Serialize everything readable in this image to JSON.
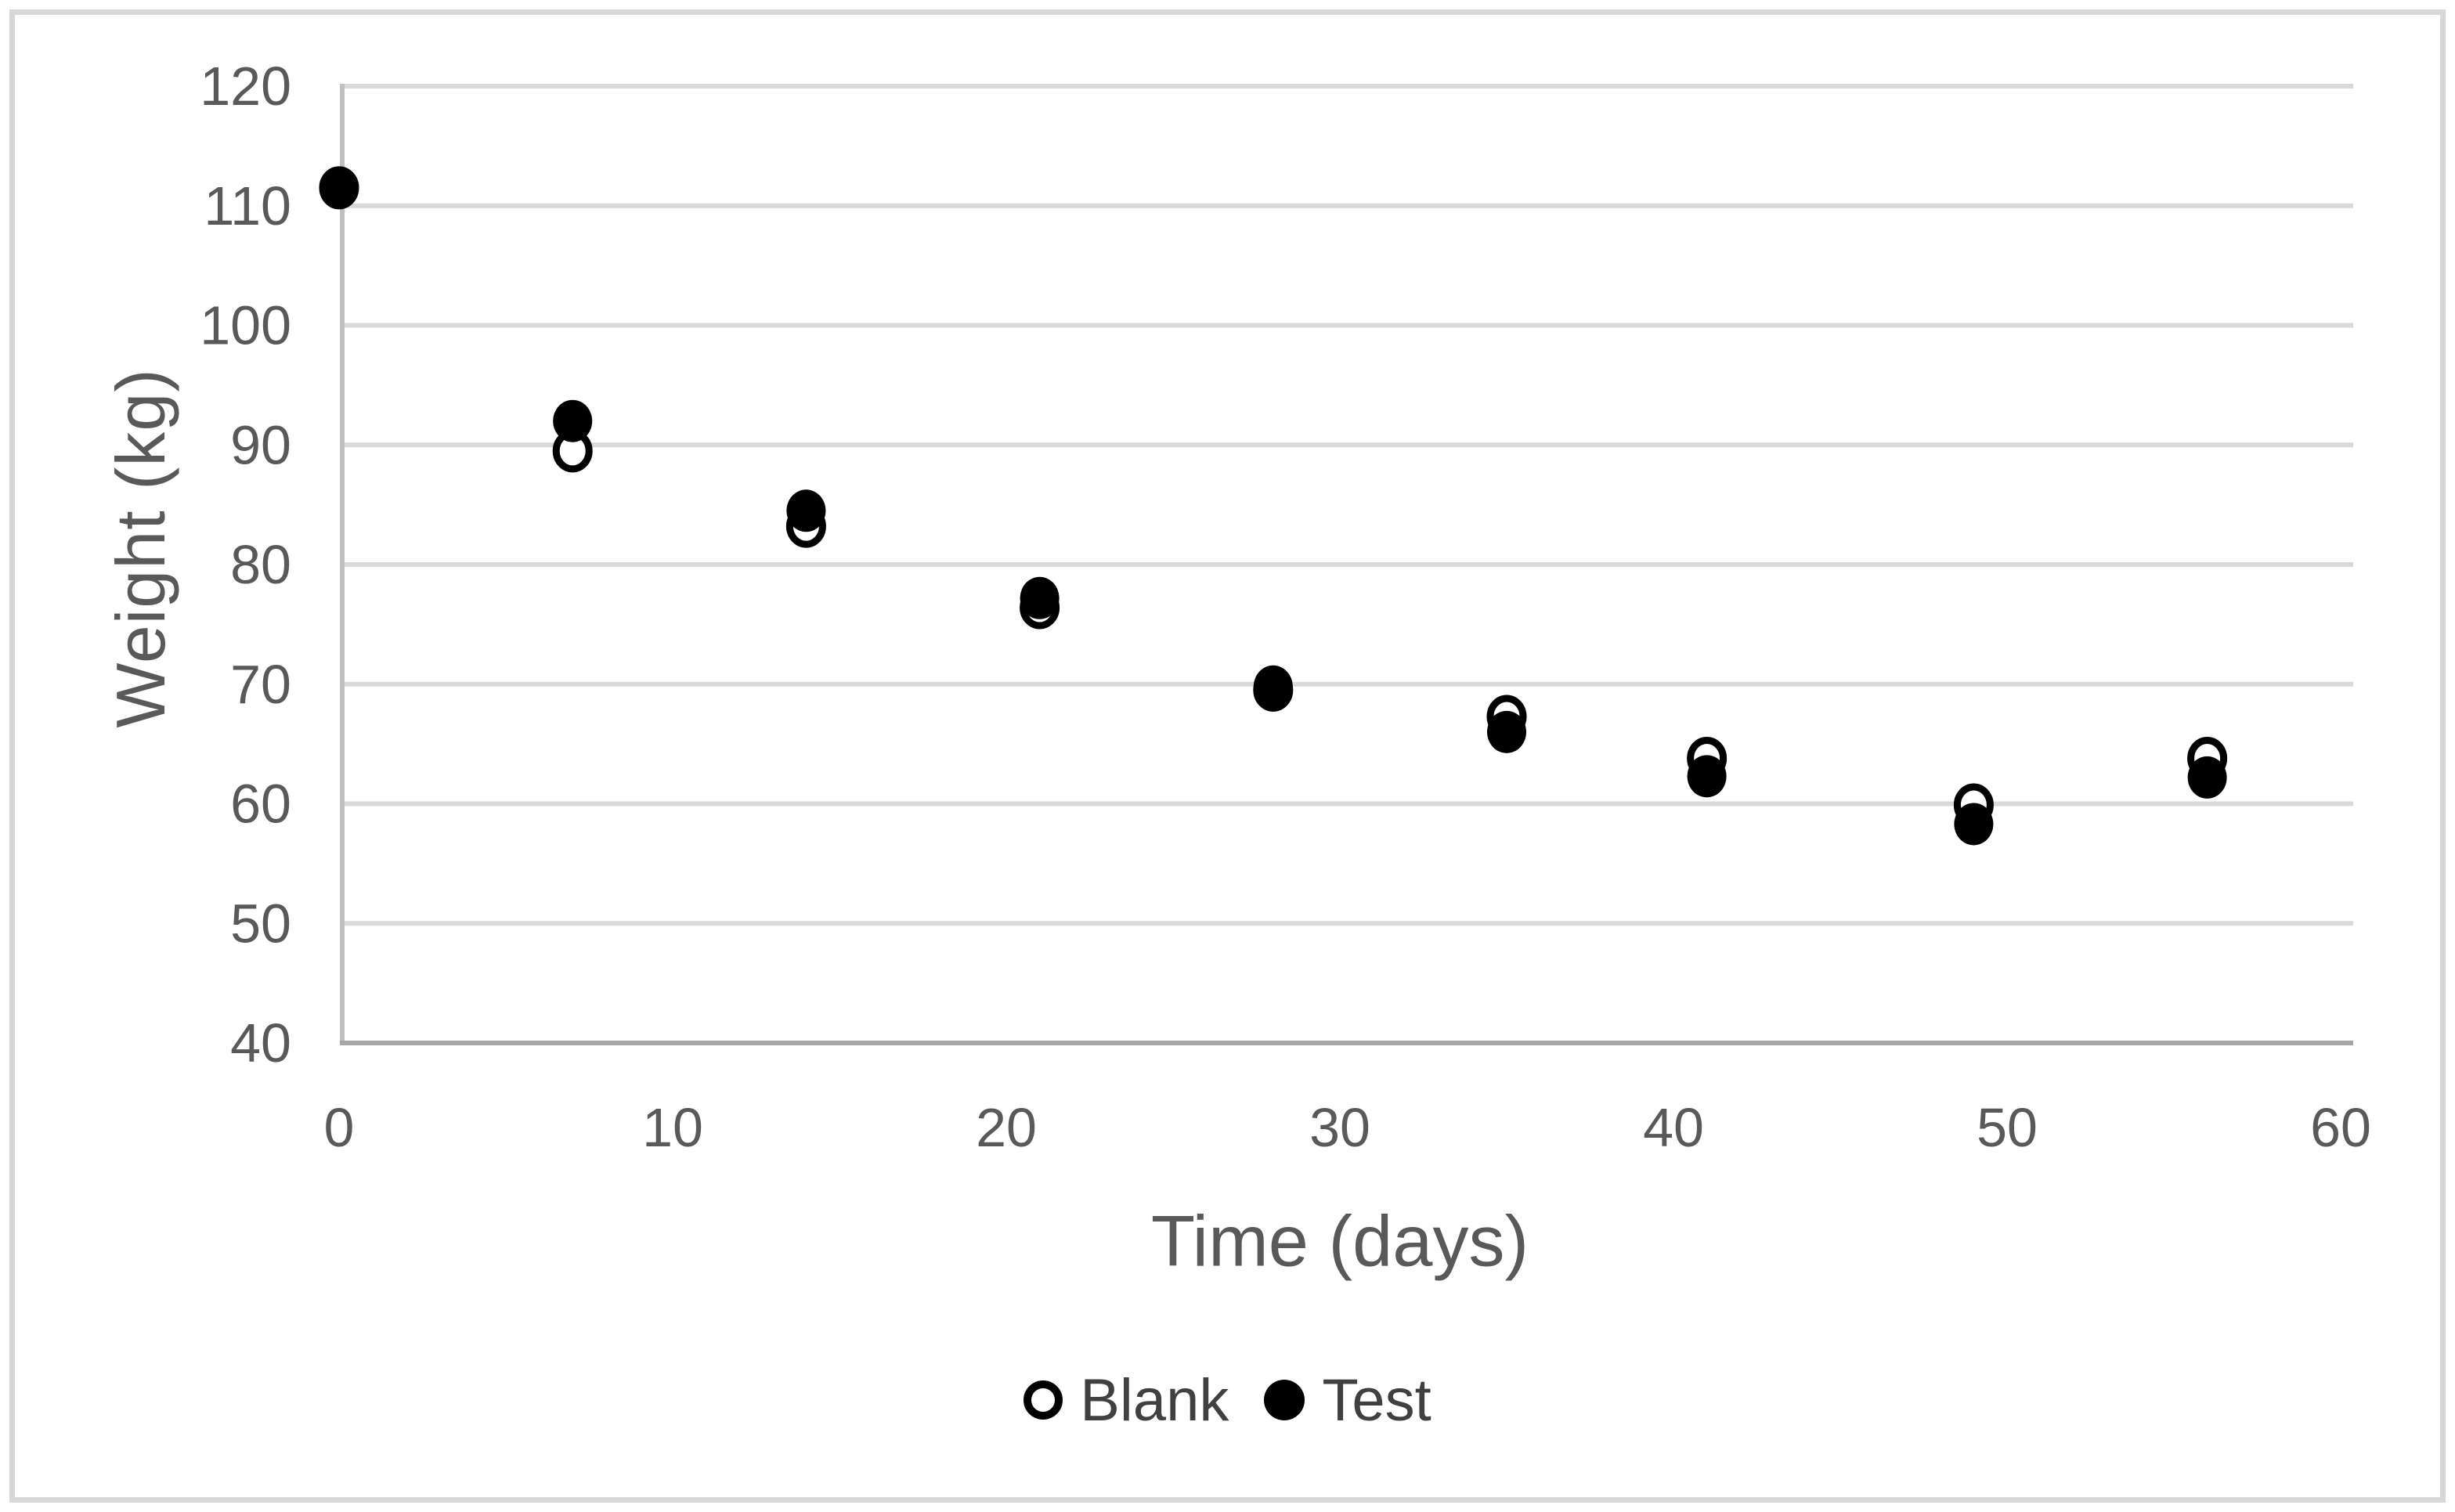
{
  "chart_data": {
    "type": "scatter",
    "title": "",
    "xlabel": "Time (days)",
    "ylabel": "Weight (kg)",
    "xlim": [
      0,
      60
    ],
    "ylim": [
      40,
      120
    ],
    "x_ticks": [
      0,
      10,
      20,
      30,
      40,
      50,
      60
    ],
    "y_ticks": [
      40,
      50,
      60,
      70,
      80,
      90,
      100,
      110,
      120
    ],
    "grid": "horizontal-gridlines-on",
    "legend_position": "bottom-center",
    "x": [
      0,
      7,
      14,
      21,
      28,
      35,
      41,
      49,
      56
    ],
    "series": [
      {
        "name": "Blank",
        "marker": "open-circle",
        "color": "#000000",
        "values": [
          111.5,
          89.5,
          83.2,
          76.4,
          69.5,
          67.3,
          63.8,
          59.9,
          63.8
        ]
      },
      {
        "name": "Test",
        "marker": "filled-circle",
        "color": "#000000",
        "values": [
          111.5,
          92.0,
          84.5,
          77.2,
          69.8,
          66.0,
          62.3,
          58.3,
          62.2
        ]
      }
    ]
  },
  "colors": {
    "background": "#ffffff",
    "frame_border": "#d8d8d8",
    "gridline": "#d9d9d9",
    "x_axis_line": "#a6a6a6",
    "y_axis_line": "#bfbfbf",
    "tick_label": "#595959",
    "axis_title": "#595959",
    "legend_text": "#404040",
    "marker": "#000000"
  }
}
